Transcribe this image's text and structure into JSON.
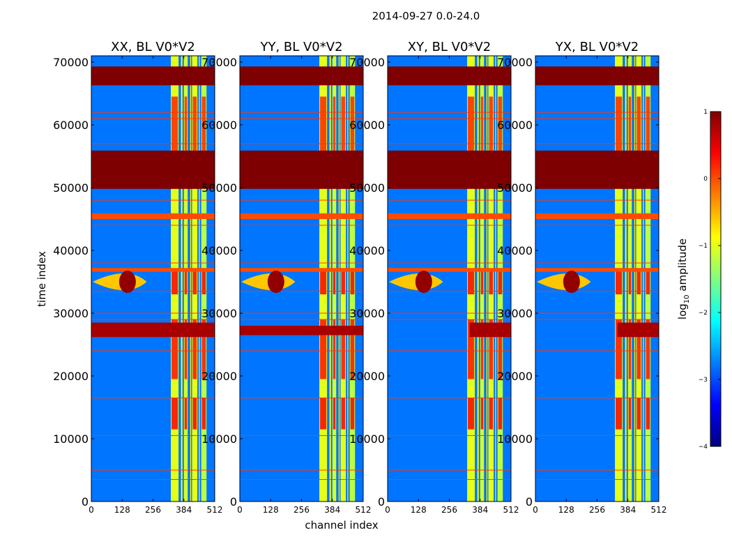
{
  "figure": {
    "suptitle": "2014-09-27 0.0-24.0"
  },
  "chart_data": {
    "type": "heatmap",
    "title": "2014-09-27 0.0-24.0",
    "xlabel": "channel index",
    "ylabel": "time index",
    "xlim": [
      0,
      512
    ],
    "ylim": [
      0,
      71000
    ],
    "x_ticks": [
      0,
      128,
      256,
      384,
      512
    ],
    "y_ticks": [
      0,
      10000,
      20000,
      30000,
      40000,
      50000,
      60000,
      70000
    ],
    "x_tick_labels": [
      "0",
      "128",
      "256",
      "384",
      "512"
    ],
    "y_tick_labels": [
      "0",
      "10000",
      "20000",
      "30000",
      "40000",
      "50000",
      "60000",
      "70000"
    ],
    "panels": [
      {
        "title": "XX, BL V0*V2",
        "mid_band": [
          26200,
          28500
        ],
        "mid_band_channels": [
          0,
          512
        ]
      },
      {
        "title": "YY, BL V0*V2",
        "mid_band": [
          26500,
          28000
        ],
        "mid_band_channels": [
          0,
          512
        ]
      },
      {
        "title": "XY, BL V0*V2",
        "mid_band": [
          26200,
          28500
        ],
        "mid_band_channels": [
          340,
          512
        ]
      },
      {
        "title": "YX, BL V0*V2",
        "mid_band": [
          26200,
          28500
        ],
        "mid_band_channels": [
          340,
          512
        ]
      }
    ],
    "colorbar": {
      "label": "log10 amplitude",
      "label_main": "log",
      "label_sub": "10",
      "label_tail": " amplitude",
      "range": [
        -4,
        1
      ],
      "ticks": [
        1,
        0,
        -1,
        -2,
        -3,
        -4
      ],
      "tick_labels": [
        "1",
        "0",
        "−1",
        "−2",
        "−3",
        "−4"
      ]
    },
    "colormap": [
      "#00007f",
      "#0000ff",
      "#007fff",
      "#00ffff",
      "#7fff7f",
      "#ffff00",
      "#ff7f00",
      "#ff0000",
      "#7f0000"
    ],
    "saturated_rows": [
      {
        "t0": 66300,
        "t1": 69300,
        "value": 1.0
      },
      {
        "t0": 49800,
        "t1": 55900,
        "value": 1.0
      },
      {
        "t0": 45000,
        "t1": 45900,
        "value": 0.0
      },
      {
        "t0": 36600,
        "t1": 37200,
        "value": 0.0
      }
    ],
    "flag_lines": [
      62000,
      61000,
      57000,
      48000,
      44000,
      38000,
      33500,
      30000,
      29000,
      24000,
      16500,
      10500,
      5000,
      3500
    ],
    "bright_channel_bands": [
      {
        "c0": 330,
        "c1": 362,
        "value": -1.0
      },
      {
        "c0": 372,
        "c1": 378,
        "value": -0.9
      },
      {
        "c0": 384,
        "c1": 400,
        "value": -1.1
      },
      {
        "c0": 410,
        "c1": 414,
        "value": -0.8
      },
      {
        "c0": 418,
        "c1": 440,
        "value": -1.0
      },
      {
        "c0": 446,
        "c1": 450,
        "value": -0.8
      },
      {
        "c0": 456,
        "c1": 478,
        "value": -1.2
      }
    ],
    "hot_blocks": [
      {
        "t0": 55800,
        "t1": 64500,
        "value": 0.2
      },
      {
        "t0": 33000,
        "t1": 36800,
        "value": 0.4
      },
      {
        "t0": 19500,
        "t1": 29000,
        "value": 0.3
      },
      {
        "t0": 11500,
        "t1": 16500,
        "value": 0.4
      }
    ],
    "background_value": -2.8
  }
}
